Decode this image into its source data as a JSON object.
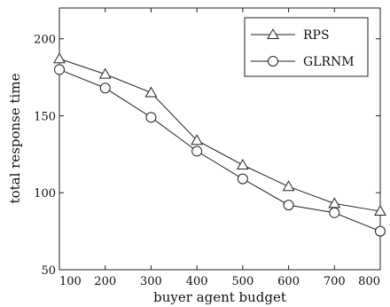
{
  "chart_data": {
    "type": "line",
    "title": "",
    "xlabel": "buyer agent budget",
    "ylabel": "total response time",
    "x": [
      100,
      200,
      300,
      400,
      500,
      600,
      700,
      800
    ],
    "xlim": [
      100,
      800
    ],
    "ylim": [
      50,
      220
    ],
    "xticks": [
      100,
      200,
      300,
      400,
      500,
      600,
      700,
      800
    ],
    "yticks": [
      50,
      100,
      150,
      200
    ],
    "x_tick_labels": [
      "100",
      "200",
      "300",
      "400",
      "500",
      "600",
      "700",
      "800"
    ],
    "y_tick_labels": [
      "50",
      "100",
      "150",
      "200"
    ],
    "grid": false,
    "legend_position": "top-right",
    "series": [
      {
        "name": "RPS",
        "marker": "triangle",
        "values": [
          187,
          177,
          165,
          134,
          118,
          104,
          93,
          88
        ]
      },
      {
        "name": "GLRNM",
        "marker": "circle",
        "values": [
          180,
          168,
          149,
          127,
          109,
          92,
          87,
          75
        ]
      }
    ]
  }
}
